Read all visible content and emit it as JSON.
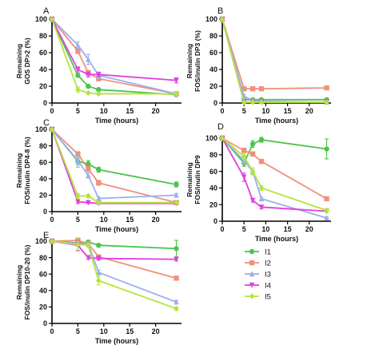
{
  "colors": {
    "I1": "#4cc44c",
    "I2": "#f0907a",
    "I3": "#9aaef0",
    "I4": "#e040e0",
    "I5": "#b4e43c"
  },
  "chart_data": [
    {
      "type": "line",
      "panel_label": "A",
      "xlabel": "Time (hours)",
      "ylabel_lines": [
        "Remaining",
        "GOS  DP>2 (%)"
      ],
      "xlim": [
        0,
        25
      ],
      "ylim": [
        0,
        100
      ],
      "xticks": [
        "0",
        "5",
        "10",
        "15",
        "20"
      ],
      "yticks": [
        "0",
        "20",
        "40",
        "60",
        "80",
        "100"
      ],
      "series": [
        {
          "name": "I1",
          "marker": "circle",
          "x": [
            0,
            5,
            7,
            9,
            24
          ],
          "y": [
            100,
            33,
            20,
            16,
            10
          ],
          "err": [
            0,
            2,
            2,
            2,
            1
          ]
        },
        {
          "name": "I2",
          "marker": "square",
          "x": [
            0,
            5,
            7,
            9,
            24
          ],
          "y": [
            100,
            62,
            36,
            29,
            11
          ],
          "err": [
            0,
            3,
            3,
            2,
            1
          ]
        },
        {
          "name": "I3",
          "marker": "triangle",
          "x": [
            0,
            5,
            7,
            9,
            24
          ],
          "y": [
            100,
            69,
            52,
            33,
            11
          ],
          "err": [
            0,
            4,
            6,
            4,
            2
          ]
        },
        {
          "name": "I4",
          "marker": "tri-down",
          "x": [
            0,
            5,
            7,
            9,
            24
          ],
          "y": [
            100,
            40,
            34,
            34,
            27
          ],
          "err": [
            0,
            3,
            3,
            2,
            3
          ]
        },
        {
          "name": "I5",
          "marker": "diamond",
          "x": [
            0,
            5,
            7,
            9,
            24
          ],
          "y": [
            100,
            16,
            12,
            11,
            11
          ],
          "err": [
            0,
            3,
            1,
            1,
            1
          ]
        }
      ]
    },
    {
      "type": "line",
      "panel_label": "B",
      "xlabel": "Time (hours)",
      "ylabel_lines": [
        "Remaining",
        "FOS/inulin DP3 (%)"
      ],
      "xlim": [
        0,
        25
      ],
      "ylim": [
        0,
        100
      ],
      "xticks": [
        "0",
        "5",
        "10",
        "15",
        "20"
      ],
      "yticks": [
        "0",
        "20",
        "40",
        "60",
        "80",
        "100"
      ],
      "series": [
        {
          "name": "I1",
          "marker": "circle",
          "x": [
            0,
            5,
            7,
            9,
            24
          ],
          "y": [
            100,
            4,
            4,
            4,
            4
          ],
          "err": [
            0,
            1,
            1,
            1,
            1
          ]
        },
        {
          "name": "I2",
          "marker": "square",
          "x": [
            0,
            5,
            7,
            9,
            24
          ],
          "y": [
            100,
            17,
            17,
            17,
            18
          ],
          "err": [
            0,
            2,
            2,
            2,
            2
          ]
        },
        {
          "name": "I3",
          "marker": "triangle",
          "x": [
            0,
            5,
            7,
            9,
            24
          ],
          "y": [
            100,
            8,
            3,
            2,
            1
          ],
          "err": [
            0,
            2,
            1,
            1,
            1
          ]
        },
        {
          "name": "I4",
          "marker": "tri-down",
          "x": [
            0,
            5,
            7,
            9,
            24
          ],
          "y": [
            100,
            1,
            1,
            1,
            1
          ],
          "err": [
            0,
            1,
            1,
            1,
            1
          ]
        },
        {
          "name": "I5",
          "marker": "diamond",
          "x": [
            0,
            5,
            7,
            9,
            24
          ],
          "y": [
            100,
            1,
            1,
            1,
            1
          ],
          "err": [
            0,
            1,
            1,
            1,
            1
          ]
        }
      ]
    },
    {
      "type": "line",
      "panel_label": "C",
      "xlabel": "Time (hours)",
      "ylabel_lines": [
        "Remaining",
        "FOS/inulin DP4-8 (%)"
      ],
      "xlim": [
        0,
        25
      ],
      "ylim": [
        0,
        100
      ],
      "xticks": [
        "0",
        "5",
        "10",
        "15",
        "20"
      ],
      "yticks": [
        "0",
        "20",
        "40",
        "60",
        "80",
        "100"
      ],
      "series": [
        {
          "name": "I1",
          "marker": "circle",
          "x": [
            0,
            5,
            7,
            9,
            24
          ],
          "y": [
            100,
            61,
            58,
            51,
            33
          ],
          "err": [
            0,
            4,
            4,
            3,
            3
          ]
        },
        {
          "name": "I2",
          "marker": "square",
          "x": [
            0,
            5,
            7,
            9,
            24
          ],
          "y": [
            100,
            70,
            52,
            35,
            11
          ],
          "err": [
            0,
            3,
            3,
            3,
            2
          ]
        },
        {
          "name": "I3",
          "marker": "triangle",
          "x": [
            0,
            5,
            7,
            9,
            24
          ],
          "y": [
            100,
            62,
            44,
            16,
            20
          ],
          "err": [
            0,
            8,
            3,
            2,
            2
          ]
        },
        {
          "name": "I4",
          "marker": "tri-down",
          "x": [
            0,
            5,
            7,
            9,
            24
          ],
          "y": [
            100,
            12,
            11,
            10,
            10
          ],
          "err": [
            0,
            2,
            1,
            1,
            1
          ]
        },
        {
          "name": "I5",
          "marker": "diamond",
          "x": [
            0,
            5,
            7,
            9,
            24
          ],
          "y": [
            100,
            19,
            19,
            11,
            11
          ],
          "err": [
            0,
            3,
            2,
            1,
            1
          ]
        }
      ]
    },
    {
      "type": "line",
      "panel_label": "D",
      "xlabel": "Time (hours)",
      "ylabel_lines": [
        "Remaining",
        "FOS/inulin DP9"
      ],
      "xlim": [
        0,
        25
      ],
      "ylim": [
        0,
        100
      ],
      "xticks": [
        "0",
        "5",
        "10",
        "15",
        "20"
      ],
      "yticks": [
        "0",
        "20",
        "40",
        "60",
        "80",
        "100"
      ],
      "series": [
        {
          "name": "I1",
          "marker": "circle",
          "x": [
            0,
            5,
            7,
            9,
            24
          ],
          "y": [
            100,
            70,
            93,
            98,
            87
          ],
          "err": [
            0,
            4,
            4,
            3,
            12
          ]
        },
        {
          "name": "I2",
          "marker": "square",
          "x": [
            0,
            5,
            7,
            9,
            24
          ],
          "y": [
            100,
            85,
            81,
            72,
            27
          ],
          "err": [
            0,
            3,
            2,
            2,
            2
          ]
        },
        {
          "name": "I3",
          "marker": "triangle",
          "x": [
            0,
            5,
            7,
            9,
            24
          ],
          "y": [
            100,
            73,
            60,
            27,
            4
          ],
          "err": [
            0,
            4,
            4,
            2,
            1
          ]
        },
        {
          "name": "I4",
          "marker": "tri-down",
          "x": [
            0,
            5,
            7,
            9,
            24
          ],
          "y": [
            100,
            53,
            25,
            17,
            12
          ],
          "err": [
            0,
            5,
            2,
            2,
            1
          ]
        },
        {
          "name": "I5",
          "marker": "diamond",
          "x": [
            0,
            5,
            7,
            9,
            24
          ],
          "y": [
            100,
            78,
            60,
            40,
            13
          ],
          "err": [
            0,
            4,
            4,
            3,
            2
          ]
        }
      ]
    },
    {
      "type": "line",
      "panel_label": "E",
      "xlabel": "Time (hours)",
      "ylabel_lines": [
        "Remaining",
        "FOS/inulin DP10-20 (%)"
      ],
      "xlim": [
        0,
        25
      ],
      "ylim": [
        0,
        100
      ],
      "xticks": [
        "0",
        "5",
        "10",
        "15",
        "20"
      ],
      "yticks": [
        "0",
        "20",
        "40",
        "60",
        "80",
        "100"
      ],
      "series": [
        {
          "name": "I1",
          "marker": "circle",
          "x": [
            0,
            5,
            7,
            9,
            24
          ],
          "y": [
            100,
            98,
            99,
            95,
            91
          ],
          "err": [
            0,
            2,
            2,
            2,
            10
          ]
        },
        {
          "name": "I2",
          "marker": "square",
          "x": [
            0,
            5,
            7,
            9,
            24
          ],
          "y": [
            100,
            101,
            97,
            81,
            55
          ],
          "err": [
            0,
            3,
            2,
            2,
            2
          ]
        },
        {
          "name": "I3",
          "marker": "triangle",
          "x": [
            0,
            5,
            7,
            9,
            24
          ],
          "y": [
            100,
            97,
            97,
            62,
            26
          ],
          "err": [
            0,
            3,
            2,
            3,
            2
          ]
        },
        {
          "name": "I4",
          "marker": "tri-down",
          "x": [
            0,
            5,
            7,
            9,
            24
          ],
          "y": [
            100,
            95,
            80,
            79,
            78
          ],
          "err": [
            0,
            6,
            2,
            2,
            2
          ]
        },
        {
          "name": "I5",
          "marker": "diamond",
          "x": [
            0,
            5,
            7,
            9,
            24
          ],
          "y": [
            100,
            96,
            95,
            52,
            18
          ],
          "err": [
            0,
            8,
            2,
            5,
            2
          ]
        }
      ]
    }
  ],
  "legend": {
    "position": "bottom-right",
    "entries": [
      "I1",
      "I2",
      "I3",
      "I4",
      "I5"
    ]
  }
}
